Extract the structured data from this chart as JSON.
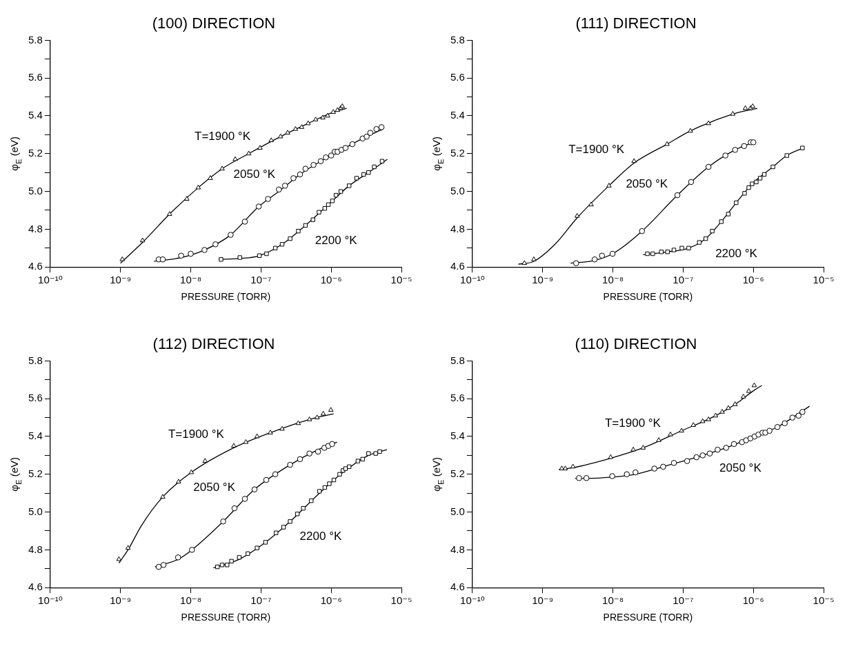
{
  "chart_data": [
    {
      "type": "scatter",
      "title": "(100) DIRECTION",
      "xlabel": "PRESSURE (TORR)",
      "ylabel": "φ$_{E}$ (eV)",
      "log": "x",
      "grid": false,
      "legend": false,
      "xlim": [
        1e-10,
        1e-05
      ],
      "xticks": [
        {
          "value": 1e-10,
          "label": "10⁻¹⁰"
        },
        {
          "value": 1e-09,
          "label": "10⁻⁹"
        },
        {
          "value": 1e-08,
          "label": "10⁻⁸"
        },
        {
          "value": 1e-07,
          "label": "10⁻⁷"
        },
        {
          "value": 1e-06,
          "label": "10⁻⁶"
        },
        {
          "value": 1e-05,
          "label": "10⁻⁵"
        }
      ],
      "ylim": [
        4.6,
        5.8
      ],
      "yticks": [
        4.6,
        {
          "value": 4.7,
          "label": null
        },
        4.8,
        {
          "value": 4.9,
          "label": null
        },
        {
          "value": 5.0,
          "label": "5.0"
        },
        {
          "value": 5.1,
          "label": null
        },
        5.2,
        {
          "value": 5.3,
          "label": null
        },
        5.4,
        {
          "value": 5.5,
          "label": null
        },
        5.6,
        {
          "value": 5.7,
          "label": null
        },
        5.8
      ],
      "series": [
        {
          "name": "T=1900 °K",
          "type": "scatter",
          "marker": "triangle",
          "color": "#000000",
          "x": [
            1.06e-09,
            2.06e-09,
            5e-09,
            8.8e-09,
            1.28e-08,
            1.9e-08,
            2.8e-08,
            4.3e-08,
            6.7e-08,
            9.7e-08,
            1.4e-07,
            1.9e-07,
            2.4e-07,
            3.1e-07,
            3.8e-07,
            4.7e-07,
            6e-07,
            7.6e-07,
            8.9e-07,
            1.07e-06,
            1.23e-06,
            1.36e-06,
            1.44e-06
          ],
          "values": [
            4.64,
            4.74,
            4.88,
            4.96,
            5.02,
            5.07,
            5.12,
            5.17,
            5.2,
            5.23,
            5.27,
            5.29,
            5.31,
            5.33,
            5.34,
            5.36,
            5.38,
            5.39,
            5.4,
            5.42,
            5.43,
            5.44,
            5.45
          ]
        },
        {
          "name": "2050 °K",
          "type": "scatter",
          "marker": "circle",
          "color": "#000000",
          "x": [
            3.5e-09,
            4e-09,
            7.3e-09,
            1e-08,
            1.57e-08,
            2.25e-08,
            3.7e-08,
            5.9e-08,
            9.3e-08,
            1.26e-07,
            1.8e-07,
            2.2e-07,
            2.9e-07,
            3.6e-07,
            4.3e-07,
            5.6e-07,
            7.1e-07,
            8.4e-07,
            1e-06,
            1.12e-06,
            1.23e-06,
            1.4e-06,
            1.6e-06,
            2e-06,
            2.8e-06,
            3.2e-06,
            3.6e-06,
            4.4e-06,
            5.2e-06
          ],
          "values": [
            4.64,
            4.64,
            4.66,
            4.67,
            4.69,
            4.72,
            4.77,
            4.84,
            4.92,
            4.96,
            5.01,
            5.03,
            5.07,
            5.09,
            5.12,
            5.14,
            5.16,
            5.18,
            5.19,
            5.21,
            5.21,
            5.22,
            5.23,
            5.25,
            5.28,
            5.29,
            5.31,
            5.33,
            5.34
          ]
        },
        {
          "name": "2200 °K",
          "type": "scatter",
          "marker": "square",
          "color": "#000000",
          "x": [
            2.7e-08,
            5e-08,
            9.5e-08,
            1.2e-07,
            1.6e-07,
            2e-07,
            2.6e-07,
            3.4e-07,
            4.3e-07,
            5.5e-07,
            6.7e-07,
            8.1e-07,
            9.1e-07,
            1.04e-06,
            1.17e-06,
            1.37e-06,
            1.8e-06,
            2.3e-06,
            2.9e-06,
            3.4e-06,
            4.1e-06,
            5.3e-06
          ],
          "values": [
            4.64,
            4.65,
            4.66,
            4.67,
            4.7,
            4.72,
            4.75,
            4.79,
            4.82,
            4.85,
            4.89,
            4.91,
            4.93,
            4.95,
            4.98,
            5.0,
            5.03,
            5.07,
            5.09,
            5.1,
            5.13,
            5.16
          ]
        },
        {
          "type": "line",
          "marker": "none",
          "color": "#000000",
          "x": [
            1e-09,
            2.06e-09,
            5e-09,
            1.28e-08,
            2.8e-08,
            6.7e-08,
            1.9e-07,
            4.7e-07,
            1.07e-06,
            1.66e-06
          ],
          "values": [
            4.62,
            4.73,
            4.88,
            5.02,
            5.12,
            5.2,
            5.29,
            5.36,
            5.42,
            5.44
          ]
        },
        {
          "type": "line",
          "marker": "none",
          "color": "#000000",
          "x": [
            3e-09,
            7.3e-09,
            1.57e-08,
            3.7e-08,
            9.3e-08,
            1.8e-07,
            3.6e-07,
            7.1e-07,
            1.4e-06,
            2.8e-06,
            5.5e-06
          ],
          "values": [
            4.63,
            4.65,
            4.69,
            4.77,
            4.92,
            5.0,
            5.09,
            5.16,
            5.22,
            5.28,
            5.33
          ]
        },
        {
          "type": "line",
          "marker": "none",
          "color": "#000000",
          "x": [
            2.5e-08,
            5e-08,
            9.5e-08,
            2e-07,
            4.3e-07,
            9.1e-07,
            1.8e-06,
            3.4e-06,
            6.3e-06
          ],
          "values": [
            4.64,
            4.645,
            4.66,
            4.72,
            4.82,
            4.93,
            5.03,
            5.1,
            5.17
          ]
        }
      ]
    },
    {
      "type": "scatter",
      "title": "(111) DIRECTION",
      "xlabel": "PRESSURE (TORR)",
      "ylabel": "φ$_{E}$ (eV)",
      "log": "x",
      "grid": false,
      "legend": false,
      "xlim": [
        1e-10,
        1e-05
      ],
      "xticks": [
        {
          "value": 1e-10,
          "label": "10⁻¹⁰"
        },
        {
          "value": 1e-09,
          "label": "10⁻⁹"
        },
        {
          "value": 1e-08,
          "label": "10⁻⁸"
        },
        {
          "value": 1e-07,
          "label": "10⁻⁷"
        },
        {
          "value": 1e-06,
          "label": "10⁻⁶"
        },
        {
          "value": 1e-05,
          "label": "10⁻⁵"
        }
      ],
      "ylim": [
        4.6,
        5.8
      ],
      "yticks": [
        4.6,
        {
          "value": 4.7,
          "label": null
        },
        4.8,
        {
          "value": 4.9,
          "label": null
        },
        {
          "value": 5.0,
          "label": "5.0"
        },
        {
          "value": 5.1,
          "label": null
        },
        5.2,
        {
          "value": 5.3,
          "label": null
        },
        5.4,
        {
          "value": 5.5,
          "label": null
        },
        5.6,
        {
          "value": 5.7,
          "label": null
        },
        5.8
      ],
      "series": [
        {
          "name": "T=1900 °K",
          "type": "scatter",
          "marker": "triangle",
          "color": "#000000",
          "x": [
            5.5e-10,
            7.5e-10,
            3.1e-09,
            4.9e-09,
            8.8e-09,
            2e-08,
            5.9e-08,
            1.27e-07,
            2.3e-07,
            5.1e-07,
            7.7e-07,
            9.1e-07,
            9.8e-07
          ],
          "values": [
            4.62,
            4.64,
            4.87,
            4.93,
            5.03,
            5.16,
            5.25,
            5.32,
            5.36,
            5.41,
            5.44,
            5.44,
            5.45
          ]
        },
        {
          "name": "2050 °K",
          "type": "scatter",
          "marker": "circle",
          "color": "#000000",
          "x": [
            3e-09,
            5.5e-09,
            7e-09,
            9.9e-09,
            2.6e-08,
            8.3e-08,
            1.3e-07,
            2.3e-07,
            4e-07,
            5.5e-07,
            7.4e-07,
            9.2e-07,
            1e-06
          ],
          "values": [
            4.62,
            4.64,
            4.66,
            4.67,
            4.79,
            4.98,
            5.05,
            5.13,
            5.19,
            5.22,
            5.24,
            5.26,
            5.26
          ]
        },
        {
          "name": "2200 °K",
          "type": "scatter",
          "marker": "square",
          "color": "#000000",
          "x": [
            3.1e-08,
            3.7e-08,
            4.9e-08,
            6e-08,
            7.4e-08,
            9.6e-08,
            1.2e-07,
            1.7e-07,
            2.1e-07,
            2.6e-07,
            3.5e-07,
            4.4e-07,
            5.7e-07,
            7.5e-07,
            8.6e-07,
            9.6e-07,
            1.1e-06,
            1.25e-06,
            1.43e-06,
            1.9e-06,
            3e-06,
            5e-06
          ],
          "values": [
            4.67,
            4.67,
            4.68,
            4.68,
            4.69,
            4.7,
            4.7,
            4.73,
            4.75,
            4.79,
            4.84,
            4.88,
            4.94,
            4.99,
            5.02,
            5.04,
            5.05,
            5.07,
            5.09,
            5.13,
            5.19,
            5.23
          ]
        },
        {
          "type": "line",
          "marker": "none",
          "color": "#000000",
          "x": [
            4.5e-10,
            7.5e-10,
            1.5e-09,
            3.1e-09,
            8.8e-09,
            2e-08,
            5.9e-08,
            1.27e-07,
            5.1e-07,
            1.14e-06
          ],
          "values": [
            4.615,
            4.63,
            4.72,
            4.86,
            5.03,
            5.15,
            5.25,
            5.32,
            5.41,
            5.44
          ]
        },
        {
          "type": "line",
          "marker": "none",
          "color": "#000000",
          "x": [
            2.5e-09,
            5.5e-09,
            9.9e-09,
            2.6e-08,
            8.3e-08,
            2.3e-07,
            5.5e-07,
            1e-06
          ],
          "values": [
            4.62,
            4.635,
            4.67,
            4.79,
            4.98,
            5.13,
            5.22,
            5.26
          ]
        },
        {
          "type": "line",
          "marker": "none",
          "color": "#000000",
          "x": [
            2.7e-08,
            6e-08,
            1.2e-07,
            2.1e-07,
            3.5e-07,
            5.7e-07,
            9.6e-07,
            1.9e-06,
            3e-06,
            5.1e-06
          ],
          "values": [
            4.665,
            4.68,
            4.7,
            4.75,
            4.84,
            4.94,
            5.04,
            5.13,
            5.19,
            5.23
          ]
        }
      ]
    },
    {
      "type": "scatter",
      "title": "(112) DIRECTION",
      "xlabel": "PRESSURE (TORR)",
      "ylabel": "φ$_{E}$ (eV)",
      "log": "x",
      "grid": false,
      "legend": false,
      "xlim": [
        1e-10,
        1e-05
      ],
      "xticks": [
        {
          "value": 1e-10,
          "label": "10⁻¹⁰"
        },
        {
          "value": 1e-09,
          "label": "10⁻⁹"
        },
        {
          "value": 1e-08,
          "label": "10⁻⁸"
        },
        {
          "value": 1e-07,
          "label": "10⁻⁷"
        },
        {
          "value": 1e-06,
          "label": "10⁻⁶"
        },
        {
          "value": 1e-05,
          "label": "10⁻⁵"
        }
      ],
      "ylim": [
        4.6,
        5.8
      ],
      "yticks": [
        4.6,
        {
          "value": 4.7,
          "label": null
        },
        4.8,
        {
          "value": 4.9,
          "label": null
        },
        {
          "value": 5.0,
          "label": "5.0"
        },
        {
          "value": 5.1,
          "label": null
        },
        5.2,
        {
          "value": 5.3,
          "label": null
        },
        5.4,
        {
          "value": 5.5,
          "label": null
        },
        5.6,
        {
          "value": 5.7,
          "label": null
        },
        5.8
      ],
      "series": [
        {
          "name": "T=1900 °K",
          "type": "scatter",
          "marker": "triangle",
          "color": "#000000",
          "x": [
            9.5e-10,
            1.28e-09,
            4e-09,
            6.7e-09,
            1.02e-08,
            1.6e-08,
            4.1e-08,
            6.1e-08,
            8.8e-08,
            1.36e-07,
            2e-07,
            3.4e-07,
            4.9e-07,
            6.3e-07,
            7.7e-07,
            9.9e-07
          ],
          "values": [
            4.75,
            4.81,
            5.08,
            5.16,
            5.21,
            5.27,
            5.35,
            5.37,
            5.4,
            5.42,
            5.44,
            5.47,
            5.49,
            5.5,
            5.52,
            5.54
          ]
        },
        {
          "name": "2050 °K",
          "type": "scatter",
          "marker": "circle",
          "color": "#000000",
          "x": [
            3.5e-09,
            4.1e-09,
            6.6e-09,
            1.04e-08,
            2.9e-08,
            4.2e-08,
            5.9e-08,
            8.1e-08,
            1.19e-07,
            1.6e-07,
            2.6e-07,
            3.6e-07,
            4.9e-07,
            6.5e-07,
            8e-07,
            9.1e-07,
            1.03e-06
          ],
          "values": [
            4.71,
            4.72,
            4.76,
            4.8,
            4.95,
            5.02,
            5.07,
            5.12,
            5.17,
            5.2,
            5.25,
            5.28,
            5.31,
            5.32,
            5.34,
            5.35,
            5.36
          ]
        },
        {
          "name": "2200 °K",
          "type": "scatter",
          "marker": "square",
          "color": "#000000",
          "x": [
            2.4e-08,
            2.8e-08,
            3.3e-08,
            3.8e-08,
            4.9e-08,
            6.5e-08,
            8.8e-08,
            1.16e-07,
            1.64e-07,
            2.1e-07,
            2.6e-07,
            3.3e-07,
            4e-07,
            5.2e-07,
            6.8e-07,
            8.1e-07,
            9.4e-07,
            1.09e-06,
            1.32e-06,
            1.47e-06,
            1.6e-06,
            1.8e-06,
            2.4e-06,
            2.8e-06,
            3.4e-06,
            4.3e-06,
            4.9e-06
          ],
          "values": [
            4.71,
            4.72,
            4.72,
            4.74,
            4.76,
            4.78,
            4.81,
            4.84,
            4.89,
            4.92,
            4.95,
            4.99,
            5.02,
            5.06,
            5.11,
            5.13,
            5.15,
            5.17,
            5.2,
            5.22,
            5.23,
            5.24,
            5.27,
            5.28,
            5.31,
            5.31,
            5.32
          ]
        },
        {
          "type": "line",
          "marker": "none",
          "color": "#000000",
          "x": [
            9.5e-10,
            1.28e-09,
            2e-09,
            4e-09,
            1.02e-08,
            4.1e-08,
            1.36e-07,
            4.9e-07,
            1.08e-06
          ],
          "values": [
            4.73,
            4.8,
            4.93,
            5.08,
            5.21,
            5.34,
            5.42,
            5.49,
            5.52
          ]
        },
        {
          "type": "line",
          "marker": "none",
          "color": "#000000",
          "x": [
            3.1e-09,
            6.6e-09,
            1.04e-08,
            2.9e-08,
            8.1e-08,
            2.6e-07,
            6.5e-07,
            1.21e-06
          ],
          "values": [
            4.71,
            4.75,
            4.8,
            4.95,
            5.12,
            5.25,
            5.33,
            5.37
          ]
        },
        {
          "type": "line",
          "marker": "none",
          "color": "#000000",
          "x": [
            2.1e-08,
            4.9e-08,
            1.16e-07,
            2.6e-07,
            6.8e-07,
            1.47e-06,
            3.4e-06,
            6.2e-06
          ],
          "values": [
            4.705,
            4.75,
            4.84,
            4.95,
            5.1,
            5.21,
            5.3,
            5.33
          ]
        }
      ]
    },
    {
      "type": "scatter",
      "title": "(110) DIRECTION",
      "xlabel": "PRESSURE (TORR)",
      "ylabel": "φ$_{E}$ (eV)",
      "log": "x",
      "grid": false,
      "legend": false,
      "xlim": [
        1e-10,
        1e-05
      ],
      "xticks": [
        {
          "value": 1e-10,
          "label": "10⁻¹⁰"
        },
        {
          "value": 1e-09,
          "label": "10⁻⁹"
        },
        {
          "value": 1e-08,
          "label": "10⁻⁸"
        },
        {
          "value": 1e-07,
          "label": "10⁻⁷"
        },
        {
          "value": 1e-06,
          "label": "10⁻⁶"
        },
        {
          "value": 1e-05,
          "label": "10⁻⁵"
        }
      ],
      "ylim": [
        4.6,
        5.8
      ],
      "yticks": [
        4.6,
        {
          "value": 4.7,
          "label": null
        },
        4.8,
        {
          "value": 4.9,
          "label": null
        },
        {
          "value": 5.0,
          "label": "5.0"
        },
        {
          "value": 5.1,
          "label": null
        },
        5.2,
        {
          "value": 5.3,
          "label": null
        },
        5.4,
        {
          "value": 5.5,
          "label": null
        },
        5.6,
        {
          "value": 5.7,
          "label": null
        },
        5.8
      ],
      "series": [
        {
          "name": "T=1900 °K",
          "type": "scatter",
          "marker": "triangle",
          "color": "#000000",
          "x": [
            1.87e-09,
            2.1e-09,
            2.7e-09,
            9.3e-09,
            1.95e-08,
            2.7e-08,
            4.5e-08,
            6.6e-08,
            9.5e-08,
            1.4e-07,
            1.9e-07,
            2.3e-07,
            2.9e-07,
            3.6e-07,
            4.4e-07,
            5.5e-07,
            7.2e-07,
            8.6e-07,
            1.03e-06
          ],
          "values": [
            5.23,
            5.23,
            5.24,
            5.29,
            5.33,
            5.34,
            5.38,
            5.41,
            5.43,
            5.46,
            5.48,
            5.49,
            5.51,
            5.53,
            5.55,
            5.57,
            5.61,
            5.64,
            5.67
          ]
        },
        {
          "name": "2050 °K",
          "type": "scatter",
          "marker": "circle",
          "color": "#000000",
          "x": [
            3.3e-09,
            4.2e-09,
            9.8e-09,
            1.58e-08,
            2.1e-08,
            3.9e-08,
            5.2e-08,
            7.4e-08,
            1.14e-07,
            1.55e-07,
            1.9e-07,
            2.4e-07,
            3.1e-07,
            4.1e-07,
            5.3e-07,
            6.9e-07,
            7.9e-07,
            9.1e-07,
            1.04e-06,
            1.18e-06,
            1.35e-06,
            1.48e-06,
            1.7e-06,
            2.2e-06,
            2.8e-06,
            3.6e-06,
            4.4e-06,
            5e-06
          ],
          "values": [
            5.18,
            5.18,
            5.19,
            5.2,
            5.21,
            5.23,
            5.24,
            5.26,
            5.27,
            5.29,
            5.3,
            5.31,
            5.33,
            5.34,
            5.36,
            5.37,
            5.38,
            5.39,
            5.4,
            5.41,
            5.42,
            5.42,
            5.43,
            5.45,
            5.47,
            5.5,
            5.51,
            5.53
          ]
        },
        {
          "type": "line",
          "marker": "none",
          "color": "#000000",
          "x": [
            1.7e-09,
            2.7e-09,
            9.3e-09,
            2.7e-08,
            9.5e-08,
            2.9e-07,
            5.5e-07,
            1.03e-06,
            1.32e-06
          ],
          "values": [
            5.225,
            5.235,
            5.285,
            5.34,
            5.43,
            5.51,
            5.57,
            5.645,
            5.67
          ]
        },
        {
          "type": "line",
          "marker": "none",
          "color": "#000000",
          "x": [
            2.9e-09,
            4.2e-09,
            9.8e-09,
            2.1e-08,
            5.2e-08,
            1.55e-07,
            4.1e-07,
            1.04e-06,
            2.2e-06,
            6.3e-06
          ],
          "values": [
            5.178,
            5.178,
            5.185,
            5.2,
            5.24,
            5.29,
            5.34,
            5.4,
            5.45,
            5.56
          ]
        }
      ]
    }
  ]
}
